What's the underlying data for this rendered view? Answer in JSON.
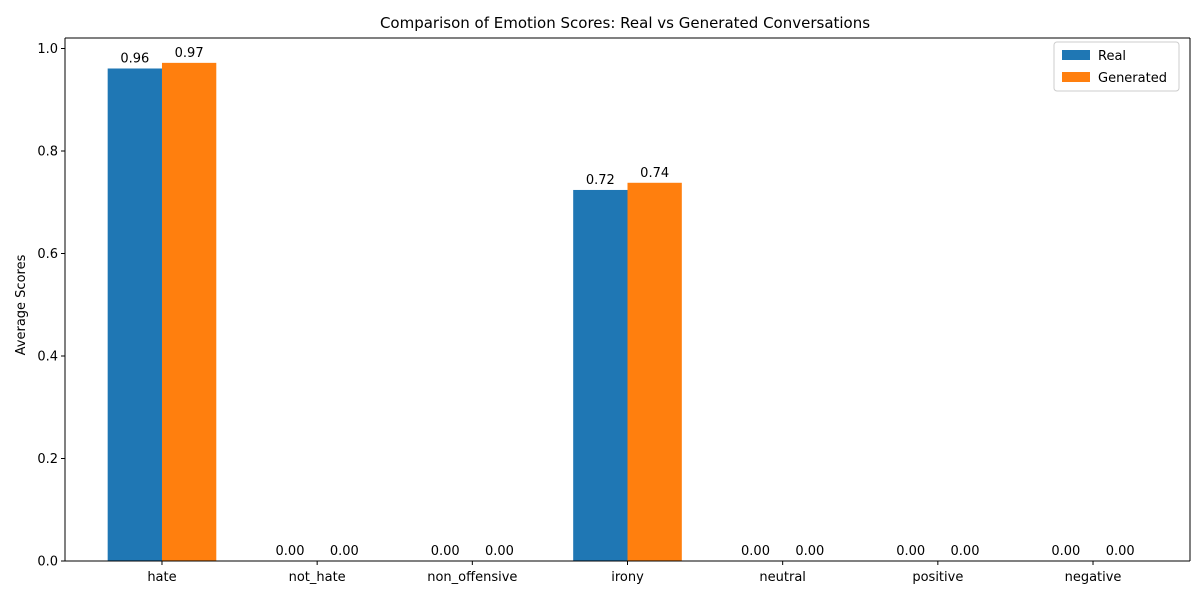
{
  "chart_data": {
    "type": "bar",
    "title": "Comparison of Emotion Scores: Real vs Generated Conversations",
    "xlabel": "",
    "ylabel": "Average Scores",
    "categories": [
      "hate",
      "not_hate",
      "non_offensive",
      "irony",
      "neutral",
      "positive",
      "negative"
    ],
    "series": [
      {
        "name": "Real",
        "color": "#1f77b4",
        "values": [
          0.961,
          0.0,
          0.0,
          0.724,
          0.0,
          0.0,
          0.0
        ],
        "labels": [
          "0.96",
          "0.00",
          "0.00",
          "0.72",
          "0.00",
          "0.00",
          "0.00"
        ]
      },
      {
        "name": "Generated",
        "color": "#ff7f0e",
        "values": [
          0.972,
          0.0,
          0.0,
          0.738,
          0.0,
          0.0,
          0.0
        ],
        "labels": [
          "0.97",
          "0.00",
          "0.00",
          "0.74",
          "0.00",
          "0.00",
          "0.00"
        ]
      }
    ],
    "ylim": [
      0,
      1.0
    ],
    "yticks": [
      "0.0",
      "0.2",
      "0.4",
      "0.6",
      "0.8",
      "1.0"
    ],
    "grid": false,
    "legend_position": "top-right"
  }
}
